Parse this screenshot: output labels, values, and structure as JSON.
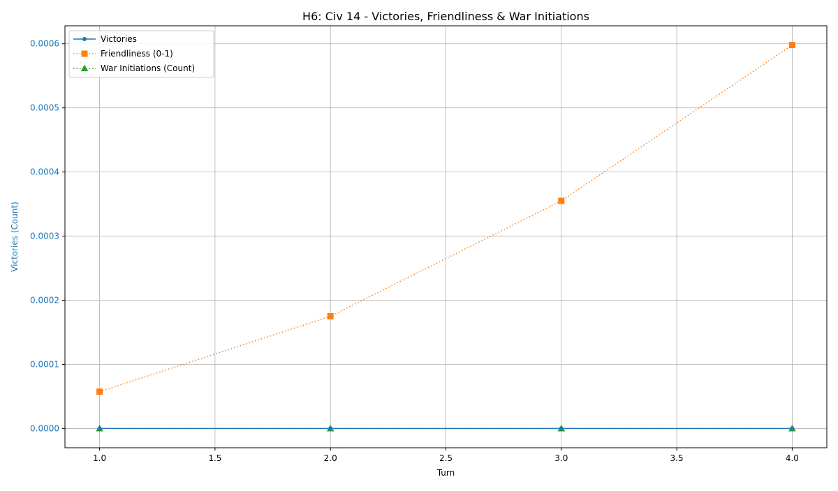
{
  "chart_data": {
    "type": "line",
    "title": "H6: Civ 14 - Victories, Friendliness & War Initiations",
    "xlabel": "Turn",
    "ylabel": "Victories (Count)",
    "x": [
      1.0,
      2.0,
      3.0,
      4.0
    ],
    "xlim": [
      0.85,
      4.15
    ],
    "ylim": [
      -3e-05,
      0.000628
    ],
    "xticks": [
      1.0,
      1.5,
      2.0,
      2.5,
      3.0,
      3.5,
      4.0
    ],
    "xtick_labels": [
      "1.0",
      "1.5",
      "2.0",
      "2.5",
      "3.0",
      "3.5",
      "4.0"
    ],
    "yticks": [
      0,
      0.0001,
      0.0002,
      0.0003,
      0.0004,
      0.0005,
      0.0006
    ],
    "ytick_labels": [
      "0.0000",
      "0.0001",
      "0.0002",
      "0.0003",
      "0.0004",
      "0.0005",
      "0.0006"
    ],
    "grid": true,
    "legend_position": "top-left",
    "ylabel_color": "#1f77b4",
    "series": [
      {
        "name": "Victories",
        "values": [
          0,
          0,
          0,
          0
        ],
        "color": "#1f77b4",
        "linestyle": "solid",
        "marker": "circle"
      },
      {
        "name": "Friendliness (0-1)",
        "values": [
          5.75e-05,
          0.000175,
          0.000355,
          0.000598
        ],
        "color": "#ff7f0e",
        "linestyle": "dotted",
        "marker": "square"
      },
      {
        "name": "War Initiations (Count)",
        "values": [
          0,
          0,
          0,
          0
        ],
        "color": "#2ca02c",
        "linestyle": "dotted",
        "marker": "triangle"
      }
    ]
  }
}
